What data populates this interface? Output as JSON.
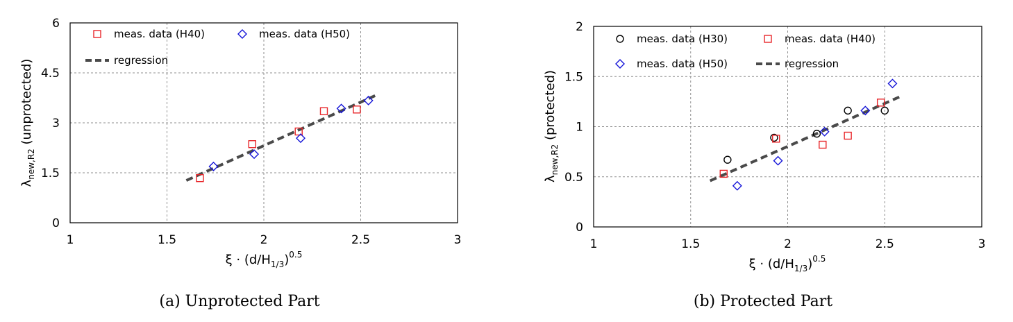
{
  "chart_data": [
    {
      "type": "scatter",
      "title": "",
      "caption": "(a) Unprotected Part",
      "xlabel": {
        "main": "ξ · (d/H",
        "sub": "1/3",
        "close": ")",
        "sup": "0.5"
      },
      "ylabel": {
        "main": "λ",
        "sub": "new,R2",
        "rest": " (unprotected)"
      },
      "xlim": [
        1,
        3
      ],
      "ylim": [
        0,
        6
      ],
      "xticks": [
        1,
        1.5,
        2,
        2.5,
        3
      ],
      "xtick_labels": [
        "1",
        "1.5",
        "2",
        "2.5",
        "3"
      ],
      "yticks": [
        0,
        1.5,
        3,
        4.5,
        6
      ],
      "ytick_labels": [
        "0",
        "1.5",
        "3",
        "4.5",
        "6"
      ],
      "grid": true,
      "legend": {
        "position": "top",
        "columns": 2
      },
      "series": [
        {
          "name": "meas. data (H40)",
          "marker": "square",
          "color": "#e8262a",
          "points": [
            [
              1.67,
              1.34
            ],
            [
              1.94,
              2.36
            ],
            [
              2.18,
              2.74
            ],
            [
              2.31,
              3.35
            ],
            [
              2.48,
              3.4
            ]
          ]
        },
        {
          "name": "meas. data (H50)",
          "marker": "diamond",
          "color": "#1515d8",
          "points": [
            [
              1.74,
              1.69
            ],
            [
              1.95,
              2.06
            ],
            [
              2.19,
              2.54
            ],
            [
              2.4,
              3.43
            ],
            [
              2.54,
              3.67
            ]
          ]
        },
        {
          "name": "regression",
          "marker": "dashed-line",
          "color": "#4a4a4a",
          "points": [
            [
              1.6,
              1.27
            ],
            [
              2.58,
              3.83
            ]
          ]
        }
      ]
    },
    {
      "type": "scatter",
      "title": "",
      "caption": "(b) Protected Part",
      "xlabel": {
        "main": "ξ · (d/H",
        "sub": "1/3",
        "close": ")",
        "sup": "0.5"
      },
      "ylabel": {
        "main": "λ",
        "sub": "new,R2",
        "rest": " (protected)"
      },
      "xlim": [
        1,
        3
      ],
      "ylim": [
        0,
        2
      ],
      "xticks": [
        1,
        1.5,
        2,
        2.5,
        3
      ],
      "xtick_labels": [
        "1",
        "1.5",
        "2",
        "2.5",
        "3"
      ],
      "yticks": [
        0,
        0.5,
        1,
        1.5,
        2
      ],
      "ytick_labels": [
        "0",
        "0.5",
        "1",
        "1.5",
        "2"
      ],
      "grid": true,
      "legend": {
        "position": "top",
        "columns": 2
      },
      "series": [
        {
          "name": "meas. data (H30)",
          "marker": "circle",
          "color": "#000000",
          "points": [
            [
              1.69,
              0.67
            ],
            [
              1.93,
              0.89
            ],
            [
              2.15,
              0.93
            ],
            [
              2.31,
              1.16
            ],
            [
              2.5,
              1.16
            ]
          ]
        },
        {
          "name": "meas. data (H40)",
          "marker": "square",
          "color": "#e8262a",
          "points": [
            [
              1.67,
              0.53
            ],
            [
              1.94,
              0.88
            ],
            [
              2.18,
              0.82
            ],
            [
              2.31,
              0.91
            ],
            [
              2.48,
              1.24
            ]
          ]
        },
        {
          "name": "meas. data (H50)",
          "marker": "diamond",
          "color": "#1515d8",
          "points": [
            [
              1.74,
              0.41
            ],
            [
              1.95,
              0.66
            ],
            [
              2.19,
              0.95
            ],
            [
              2.4,
              1.16
            ],
            [
              2.54,
              1.43
            ]
          ]
        },
        {
          "name": "regression",
          "marker": "dashed-line",
          "color": "#4a4a4a",
          "points": [
            [
              1.6,
              0.46
            ],
            [
              2.58,
              1.3
            ]
          ]
        }
      ]
    }
  ]
}
